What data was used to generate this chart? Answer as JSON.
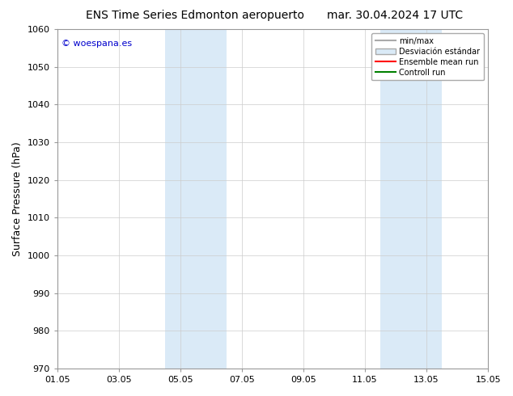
{
  "title_left": "ENS Time Series Edmonton aeropuerto",
  "title_right": "mar. 30.04.2024 17 UTC",
  "ylabel": "Surface Pressure (hPa)",
  "ylim": [
    970,
    1060
  ],
  "yticks": [
    970,
    980,
    990,
    1000,
    1010,
    1020,
    1030,
    1040,
    1050,
    1060
  ],
  "xticks_labels": [
    "01.05",
    "03.05",
    "05.05",
    "07.05",
    "09.05",
    "11.05",
    "13.05",
    "15.05"
  ],
  "xticks_values": [
    0,
    2,
    4,
    6,
    8,
    10,
    12,
    14
  ],
  "xlim": [
    0,
    14
  ],
  "watermark": "© woespana.es",
  "shaded_regions": [
    {
      "x_start": 3.5,
      "x_end": 5.5,
      "color": "#daeaf7"
    },
    {
      "x_start": 10.5,
      "x_end": 12.5,
      "color": "#daeaf7"
    }
  ],
  "legend_entries": [
    {
      "label": "min/max",
      "color": "#aaaaaa",
      "lw": 1.5,
      "type": "line"
    },
    {
      "label": "Desviación estándar",
      "color": "#daeaf7",
      "edgecolor": "#aaaaaa",
      "type": "patch"
    },
    {
      "label": "Ensemble mean run",
      "color": "red",
      "lw": 1.5,
      "type": "line"
    },
    {
      "label": "Controll run",
      "color": "green",
      "lw": 1.5,
      "type": "line"
    }
  ],
  "background_color": "#ffffff",
  "grid_color": "#cccccc",
  "title_fontsize": 10,
  "axis_fontsize": 9,
  "tick_fontsize": 8,
  "watermark_color": "#0000cc",
  "watermark_fontsize": 8
}
